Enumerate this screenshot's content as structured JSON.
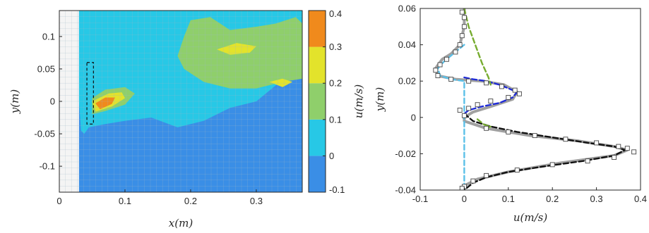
{
  "chart_data": [
    {
      "type": "heatmap",
      "title": "",
      "xlabel": "x(m)",
      "ylabel": "y(m)",
      "xlim": [
        0,
        0.37
      ],
      "ylim": [
        -0.14,
        0.14
      ],
      "x_ticks": [
        "0",
        "0.1",
        "0.2",
        "0.3"
      ],
      "x_tick_values": [
        0,
        0.1,
        0.2,
        0.3
      ],
      "y_ticks": [
        "0.1",
        "0.05",
        "0",
        "-0.05",
        "-0.1"
      ],
      "y_tick_values": [
        0.1,
        0.05,
        0,
        -0.05,
        -0.1
      ],
      "grid": true,
      "masked_region_x": [
        0,
        0.03
      ],
      "probe_box": {
        "x": [
          0.042,
          0.052
        ],
        "y": [
          -0.035,
          0.06
        ]
      },
      "colorbar": {
        "label": "u(m/s)",
        "ticks": [
          "0.4",
          "0.3",
          "0.2",
          "0.1",
          "0",
          "-0.1"
        ],
        "tick_values": [
          0.4,
          0.3,
          0.2,
          0.1,
          0,
          -0.1
        ],
        "range": [
          -0.1,
          0.4
        ],
        "levels": [
          {
            "from": -0.1,
            "to": 0.0,
            "color": "#3a8ee6"
          },
          {
            "from": 0.0,
            "to": 0.1,
            "color": "#27c8e6"
          },
          {
            "from": 0.1,
            "to": 0.2,
            "color": "#8fcf6b"
          },
          {
            "from": 0.2,
            "to": 0.3,
            "color": "#e3e32b"
          },
          {
            "from": 0.3,
            "to": 0.4,
            "color": "#f08a1c"
          }
        ]
      },
      "regions": [
        {
          "level": 1,
          "points": [
            [
              0.03,
              0.14
            ],
            [
              0.37,
              0.14
            ],
            [
              0.37,
              0.045
            ],
            [
              0.33,
              0.025
            ],
            [
              0.3,
              0.0
            ],
            [
              0.26,
              -0.01
            ],
            [
              0.22,
              -0.03
            ],
            [
              0.18,
              -0.04
            ],
            [
              0.14,
              -0.025
            ],
            [
              0.1,
              -0.03
            ],
            [
              0.07,
              -0.035
            ],
            [
              0.045,
              -0.04
            ],
            [
              0.038,
              -0.05
            ],
            [
              0.033,
              -0.045
            ],
            [
              0.03,
              0.0
            ]
          ]
        },
        {
          "level": 2,
          "points": [
            [
              0.2,
              0.125
            ],
            [
              0.23,
              0.13
            ],
            [
              0.26,
              0.11
            ],
            [
              0.3,
              0.115
            ],
            [
              0.33,
              0.12
            ],
            [
              0.36,
              0.13
            ],
            [
              0.37,
              0.12
            ],
            [
              0.37,
              0.035
            ],
            [
              0.34,
              0.03
            ],
            [
              0.3,
              0.02
            ],
            [
              0.26,
              0.02
            ],
            [
              0.22,
              0.03
            ],
            [
              0.19,
              0.05
            ],
            [
              0.18,
              0.07
            ],
            [
              0.19,
              0.1
            ]
          ]
        },
        {
          "level": 2,
          "points": [
            [
              0.05,
              0.005
            ],
            [
              0.07,
              0.018
            ],
            [
              0.1,
              0.022
            ],
            [
              0.115,
              0.012
            ],
            [
              0.1,
              -0.005
            ],
            [
              0.07,
              -0.015
            ],
            [
              0.05,
              -0.02
            ]
          ]
        },
        {
          "level": 3,
          "points": [
            [
              0.05,
              0.0
            ],
            [
              0.075,
              0.012
            ],
            [
              0.095,
              0.014
            ],
            [
              0.1,
              0.005
            ],
            [
              0.08,
              -0.008
            ],
            [
              0.055,
              -0.016
            ]
          ]
        },
        {
          "level": 3,
          "points": [
            [
              0.24,
              0.08
            ],
            [
              0.27,
              0.09
            ],
            [
              0.3,
              0.085
            ],
            [
              0.29,
              0.075
            ],
            [
              0.26,
              0.072
            ]
          ]
        },
        {
          "level": 3,
          "points": [
            [
              0.32,
              0.03
            ],
            [
              0.34,
              0.035
            ],
            [
              0.355,
              0.03
            ],
            [
              0.34,
              0.022
            ]
          ]
        },
        {
          "level": 4,
          "points": [
            [
              0.055,
              -0.003
            ],
            [
              0.07,
              0.006
            ],
            [
              0.085,
              0.006
            ],
            [
              0.08,
              -0.004
            ],
            [
              0.062,
              -0.012
            ]
          ]
        }
      ]
    },
    {
      "type": "line",
      "title": "",
      "xlabel": "u(m/s)",
      "ylabel": "y(m)",
      "xlim": [
        -0.1,
        0.4
      ],
      "ylim": [
        -0.04,
        0.06
      ],
      "x_ticks": [
        "-0.1",
        "0",
        "0.1",
        "0.2",
        "0.3",
        "0.4"
      ],
      "x_tick_values": [
        -0.1,
        0,
        0.1,
        0.2,
        0.3,
        0.4
      ],
      "y_ticks": [
        "0.06",
        "0.04",
        "0.02",
        "0",
        "-0.02",
        "-0.04"
      ],
      "y_tick_values": [
        0.06,
        0.04,
        0.02,
        0,
        -0.02,
        -0.04
      ],
      "grid": false,
      "legend": "none",
      "series": [
        {
          "style": "solid",
          "color": "#a0a0a0",
          "x": [
            0.0,
            0.0,
            -0.01,
            -0.03,
            -0.05,
            -0.065,
            -0.06,
            -0.02,
            0.04,
            0.09,
            0.12,
            0.11,
            0.06,
            0.02,
            0.0,
            0.0,
            0.05,
            0.15,
            0.26,
            0.34,
            0.37,
            0.34,
            0.22,
            0.1,
            0.03,
            0.005,
            0.0,
            0.0
          ],
          "y": [
            0.06,
            0.05,
            0.04,
            0.035,
            0.032,
            0.027,
            0.023,
            0.021,
            0.02,
            0.018,
            0.014,
            0.01,
            0.006,
            0.003,
            0.0,
            -0.002,
            -0.006,
            -0.01,
            -0.013,
            -0.016,
            -0.018,
            -0.021,
            -0.025,
            -0.03,
            -0.034,
            -0.037,
            -0.039,
            -0.04
          ]
        },
        {
          "style": "dashed",
          "color": "#1f2bd6",
          "x": [
            0.0,
            0.02,
            0.05,
            0.08,
            0.1,
            0.12,
            0.11,
            0.08,
            0.04,
            0.01,
            0.0
          ],
          "y": [
            0.022,
            0.021,
            0.02,
            0.018,
            0.016,
            0.014,
            0.011,
            0.008,
            0.006,
            0.004,
            0.002
          ]
        },
        {
          "style": "dashed",
          "color": "#111111",
          "x": [
            0.0,
            0.02,
            0.06,
            0.12,
            0.2,
            0.28,
            0.34,
            0.365,
            0.34,
            0.27,
            0.18,
            0.1,
            0.05,
            0.02,
            0.0
          ],
          "y": [
            0.002,
            -0.002,
            -0.005,
            -0.008,
            -0.011,
            -0.014,
            -0.016,
            -0.018,
            -0.021,
            -0.024,
            -0.027,
            -0.03,
            -0.033,
            -0.036,
            -0.04
          ]
        },
        {
          "style": "dashed",
          "color": "#5bc0e8",
          "x": [
            0.0,
            -0.02,
            -0.045,
            -0.06,
            -0.055,
            -0.03,
            0.0,
            0.0
          ],
          "y": [
            0.04,
            0.036,
            0.031,
            0.027,
            0.023,
            0.021,
            0.02,
            -0.04
          ]
        },
        {
          "style": "dashed",
          "color": "#77ac30",
          "x": [
            0.0,
            0.01,
            0.025,
            0.04,
            0.055,
            0.06
          ],
          "y": [
            0.06,
            0.05,
            0.04,
            0.03,
            0.022,
            0.018
          ]
        },
        {
          "style": "dashed",
          "color": "#77ac30",
          "x": [
            0.03,
            0.045,
            0.06,
            0.05
          ],
          "y": [
            -0.001,
            -0.004,
            -0.005,
            -0.006
          ]
        },
        {
          "style": "markers",
          "color": "#444444",
          "x": [
            -0.005,
            0.0,
            0.0,
            -0.005,
            -0.01,
            -0.02,
            -0.04,
            -0.055,
            -0.065,
            -0.06,
            -0.03,
            0.01,
            0.05,
            0.085,
            0.115,
            0.125,
            0.1,
            0.06,
            0.03,
            0.01,
            -0.01,
            0.0,
            0.05,
            0.1,
            0.16,
            0.23,
            0.3,
            0.35,
            0.37,
            0.385,
            0.34,
            0.28,
            0.2,
            0.12,
            0.05,
            0.02,
            0.0,
            -0.005
          ],
          "y": [
            0.058,
            0.055,
            0.05,
            0.045,
            0.04,
            0.036,
            0.032,
            0.029,
            0.026,
            0.023,
            0.021,
            0.02,
            0.019,
            0.017,
            0.015,
            0.013,
            0.011,
            0.009,
            0.007,
            0.005,
            0.004,
            0.001,
            -0.006,
            -0.008,
            -0.01,
            -0.012,
            -0.014,
            -0.016,
            -0.017,
            -0.019,
            -0.022,
            -0.024,
            -0.026,
            -0.029,
            -0.032,
            -0.035,
            -0.038,
            -0.039
          ]
        }
      ]
    }
  ]
}
